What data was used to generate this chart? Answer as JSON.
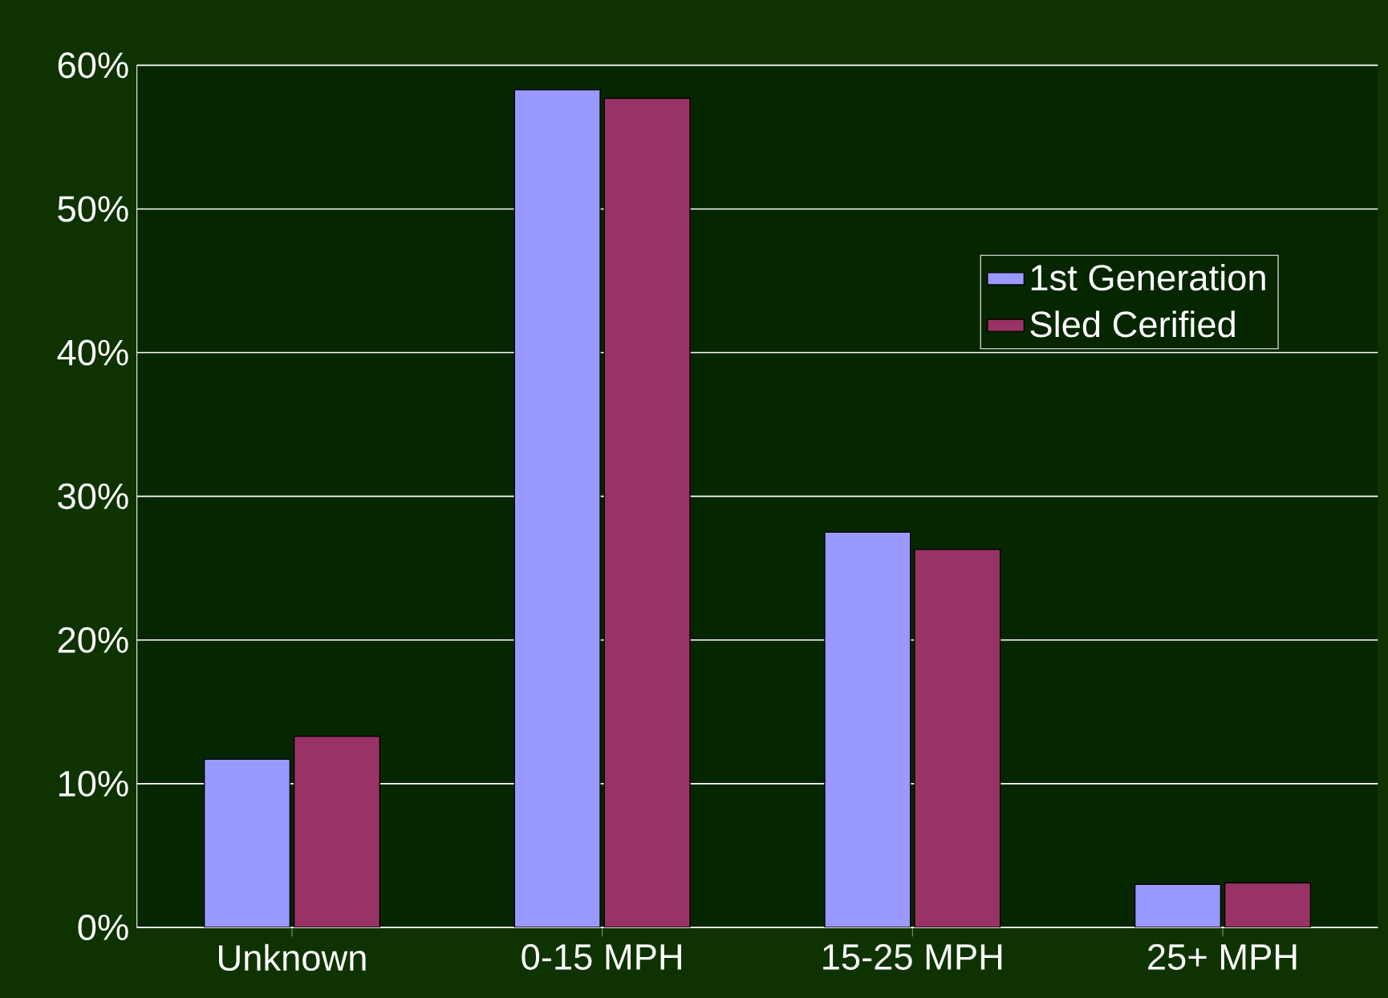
{
  "chart_data": {
    "type": "bar",
    "categories": [
      "Unknown",
      "0-15 MPH",
      "15-25 MPH",
      "25+ MPH"
    ],
    "series": [
      {
        "name": "1st Generation",
        "color": "#9999ff",
        "values": [
          11.7,
          58.3,
          27.5,
          3.0
        ]
      },
      {
        "name": "Sled Cerified",
        "color": "#993366",
        "values": [
          13.3,
          57.7,
          26.3,
          3.1
        ]
      }
    ],
    "ylim": [
      0,
      60
    ],
    "yticks": [
      {
        "value": 0,
        "label": "0%"
      },
      {
        "value": 10,
        "label": "10%"
      },
      {
        "value": 20,
        "label": "20%"
      },
      {
        "value": 30,
        "label": "30%"
      },
      {
        "value": 40,
        "label": "40%"
      },
      {
        "value": 50,
        "label": "50%"
      },
      {
        "value": 60,
        "label": "60%"
      }
    ],
    "grid": "y",
    "legend": "top right"
  }
}
